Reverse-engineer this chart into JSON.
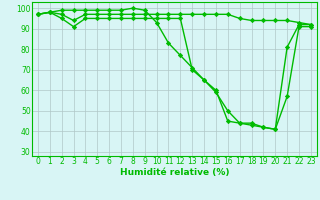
{
  "xlabel": "Humidité relative (%)",
  "x": [
    0,
    1,
    2,
    3,
    4,
    5,
    6,
    7,
    8,
    9,
    10,
    11,
    12,
    13,
    14,
    15,
    16,
    17,
    18,
    19,
    20,
    21,
    22,
    23
  ],
  "line1": [
    97,
    98,
    99,
    99,
    99,
    99,
    99,
    99,
    100,
    99,
    93,
    83,
    77,
    71,
    65,
    59,
    50,
    44,
    44,
    42,
    41,
    81,
    92,
    92
  ],
  "line2": [
    97,
    98,
    97,
    94,
    97,
    97,
    97,
    97,
    97,
    97,
    97,
    97,
    97,
    97,
    97,
    97,
    97,
    95,
    94,
    94,
    94,
    94,
    93,
    92
  ],
  "line3": [
    97,
    98,
    95,
    91,
    95,
    95,
    95,
    95,
    95,
    95,
    95,
    95,
    95,
    70,
    65,
    60,
    45,
    44,
    43,
    42,
    41,
    57,
    91,
    91
  ],
  "line_color": "#00bb00",
  "bg_color": "#d8f5f5",
  "grid_color": "#b0c8c8",
  "ylim": [
    28,
    103
  ],
  "xlim": [
    -0.5,
    23.5
  ],
  "yticks": [
    30,
    40,
    50,
    60,
    70,
    80,
    90,
    100
  ],
  "xticks": [
    0,
    1,
    2,
    3,
    4,
    5,
    6,
    7,
    8,
    9,
    10,
    11,
    12,
    13,
    14,
    15,
    16,
    17,
    18,
    19,
    20,
    21,
    22,
    23
  ],
  "marker": "D",
  "marker_size": 2.2,
  "line_width": 1.0,
  "tick_fontsize": 5.5,
  "label_fontsize": 6.5
}
